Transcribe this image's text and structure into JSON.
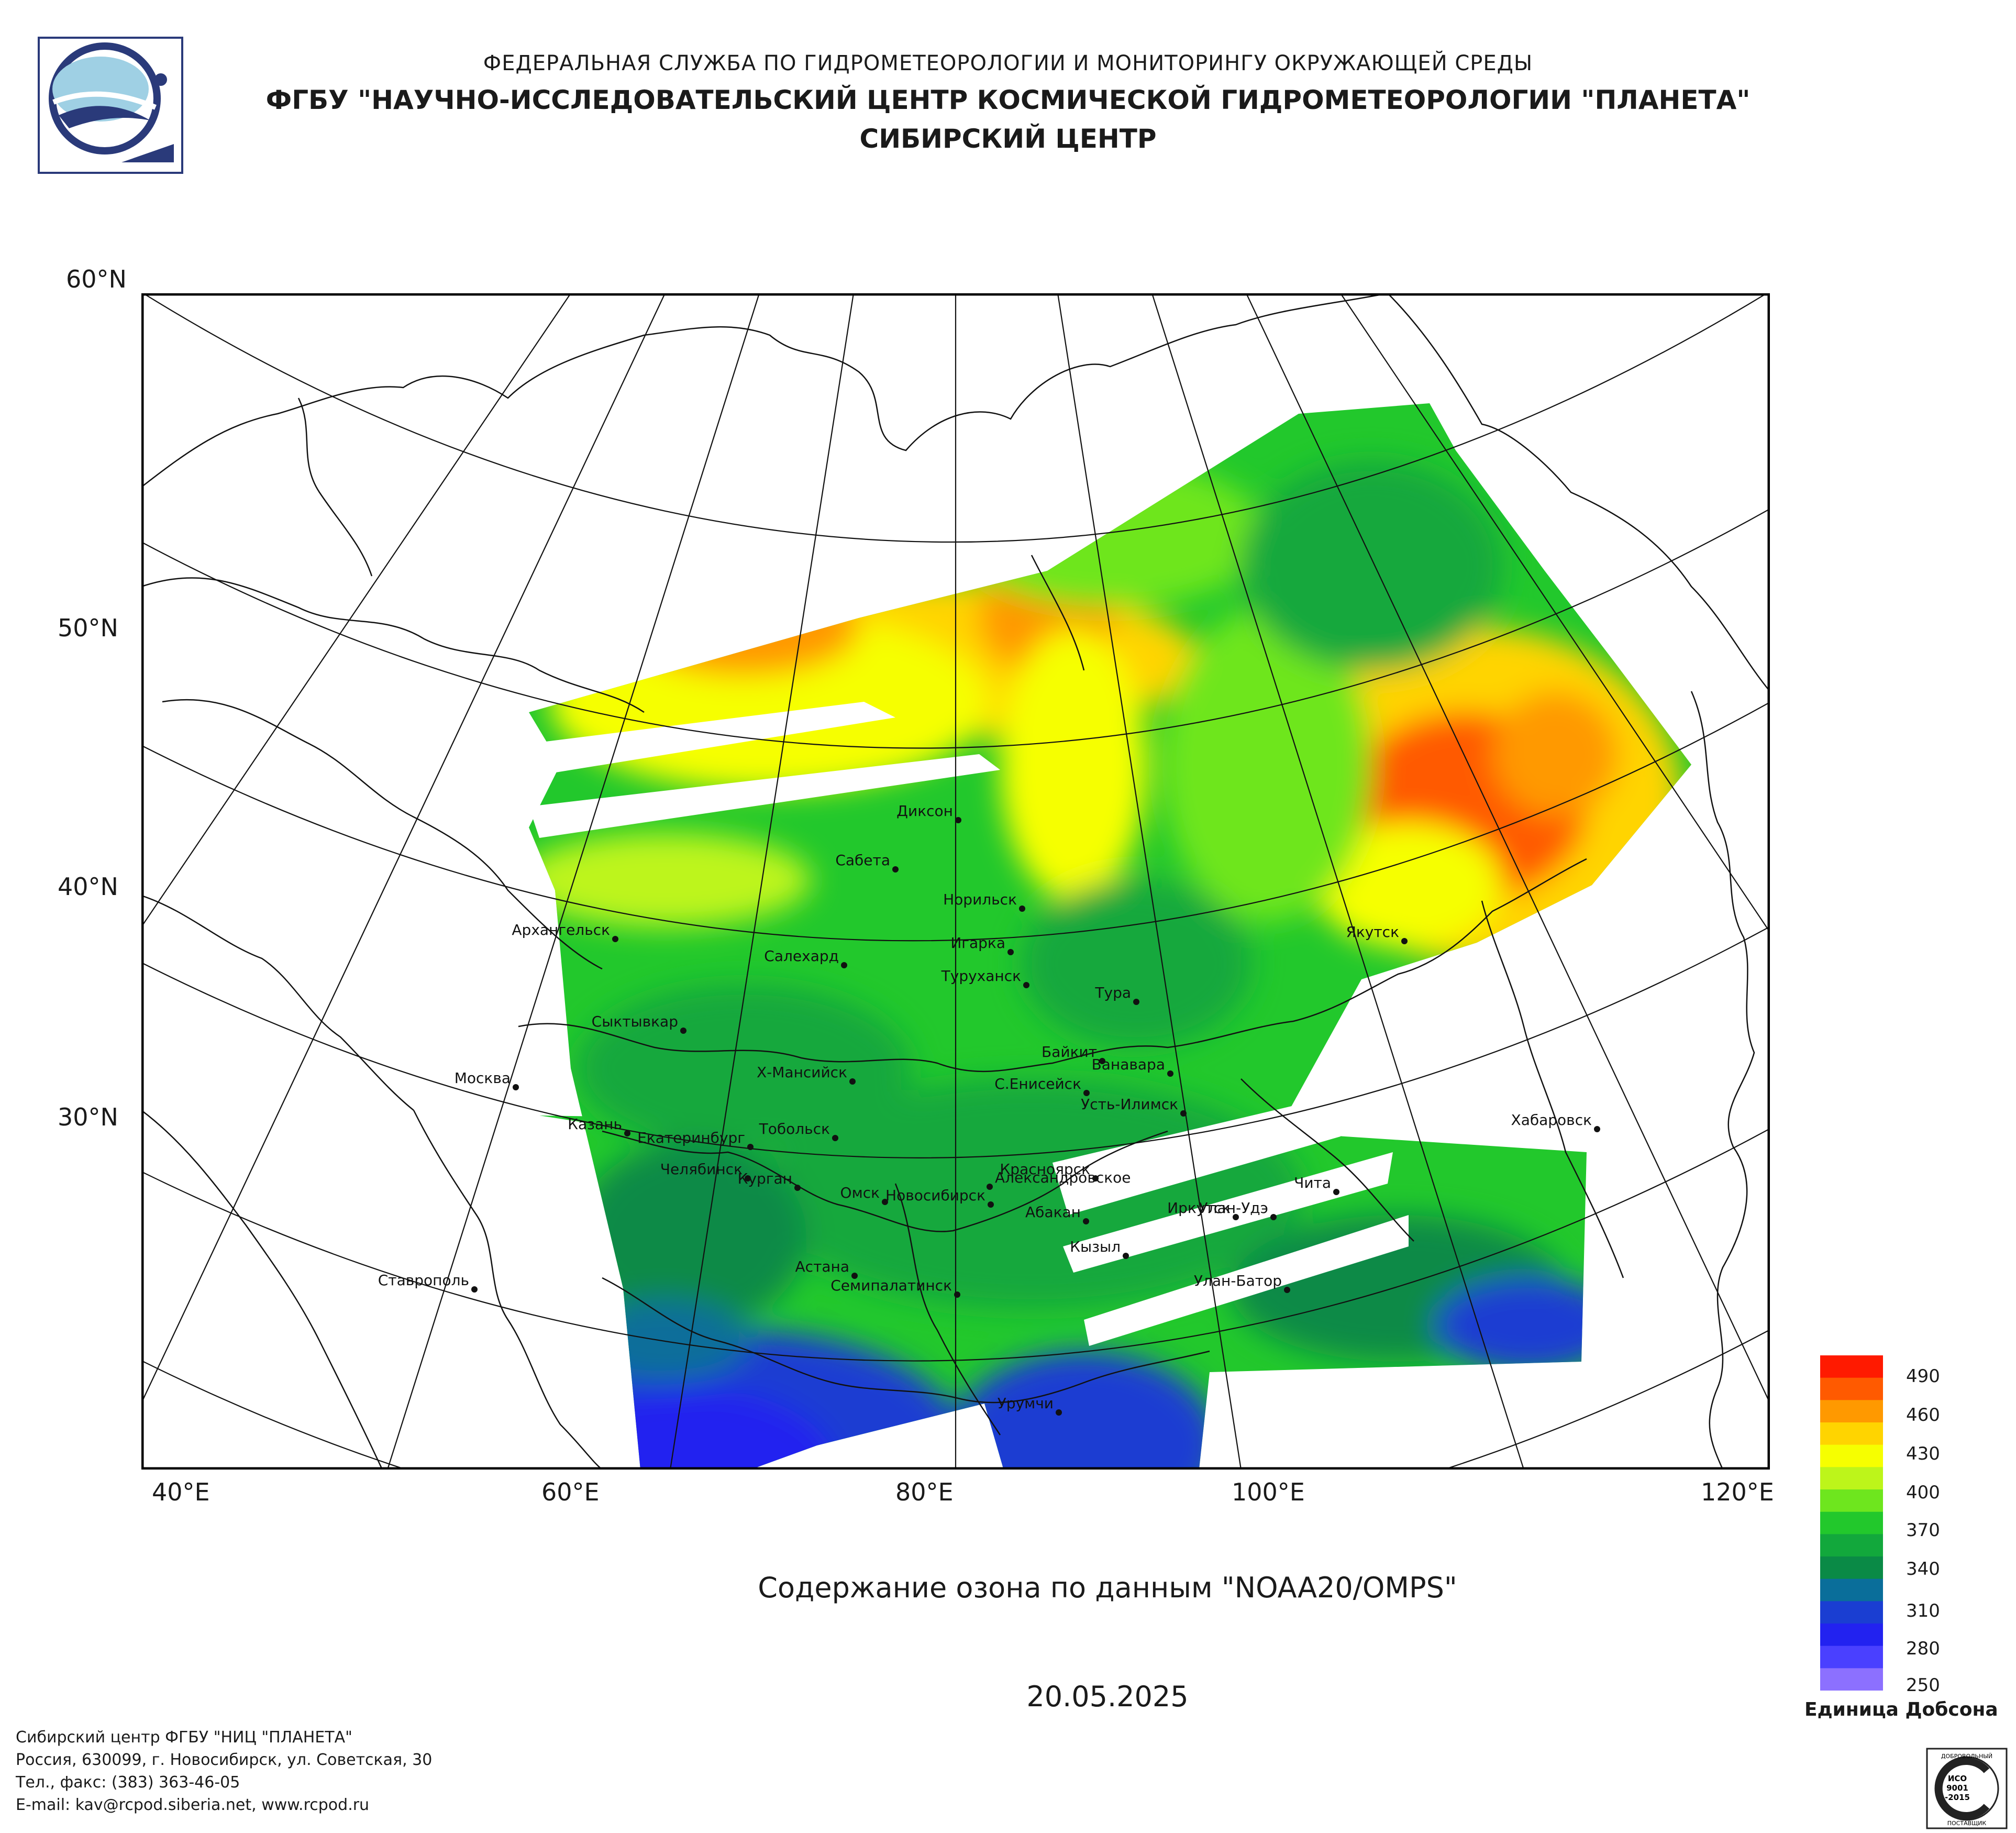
{
  "header": {
    "agency": "ФЕДЕРАЛЬНАЯ СЛУЖБА ПО ГИДРОМЕТЕОРОЛОГИИ И МОНИТОРИНГУ ОКРУЖАЮЩЕЙ СРЕДЫ",
    "org": "ФГБУ \"НАУЧНО-ИССЛЕДОВАТЕЛЬСКИЙ ЦЕНТР КОСМИЧЕСКОЙ ГИДРОМЕТЕОРОЛОГИИ \"ПЛАНЕТА\"",
    "center": "СИБИРСКИЙ ЦЕНТР"
  },
  "map": {
    "lat_labels": [
      "60°N",
      "50°N",
      "40°N",
      "30°N"
    ],
    "lon_labels": [
      "40°E",
      "60°E",
      "80°E",
      "100°E",
      "120°E"
    ],
    "cities": [
      "Диксон",
      "Сабета",
      "Норильск",
      "Архангельск",
      "Игарка",
      "Салехард",
      "Туруханск",
      "Тура",
      "Якутск",
      "Сыктывкар",
      "Байкит",
      "Ванавара",
      "Москва",
      "Х-Мансийск",
      "С.Енисейск",
      "Усть-Илимск",
      "Хабаровск",
      "Казань",
      "Тобольск",
      "Екатеринбург",
      "Красноярск",
      "Челябинск",
      "Александровское",
      "Чита",
      "Курган",
      "Омск",
      "Новосибирск",
      "Абакан",
      "Улан-Удэ",
      "Иркутск",
      "Кызыл",
      "Ставрополь",
      "Астана",
      "Семипалатинск",
      "Улан-Батор",
      "Урумчи"
    ]
  },
  "caption": "Содержание озона по данным \"NOAA20/OMPS\"",
  "date": "20.05.2025",
  "legend": {
    "ticks": [
      "490",
      "460",
      "430",
      "400",
      "370",
      "340",
      "310",
      "280",
      "250"
    ],
    "unit": "Единица Добсона",
    "colors": [
      "#ff1a00",
      "#ff5a00",
      "#ff9900",
      "#ffd400",
      "#f6ff00",
      "#bdf51a",
      "#6ee61e",
      "#22c82c",
      "#12a83c",
      "#0a8a46",
      "#0a6e9a",
      "#1a3ed2",
      "#2222f0",
      "#4a40ff",
      "#8c70ff"
    ]
  },
  "footer": {
    "line1": "Сибирский центр ФГБУ \"НИЦ \"ПЛАНЕТА\"",
    "line2": "Россия, 630099, г. Новосибирск, ул. Советская, 30",
    "line3": "Тел., факс: (383) 363-46-05",
    "line4": "E-mail: kav@rcpod.siberia.net, www.rcpod.ru"
  },
  "iso_badge": {
    "top": "ДОБРОВОЛЬНЫЙ",
    "mid1": "ИСО",
    "mid2": "9001",
    "mid3": "-2015",
    "bottom": "ПОСТАВЩИК"
  }
}
